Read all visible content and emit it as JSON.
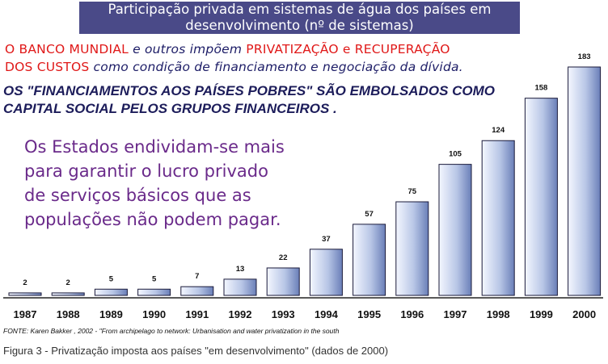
{
  "slide": {
    "title_line1": "Participação privada em sistemas de água dos países em",
    "title_line2": "desenvolvimento (nº de sistemas)",
    "line1": {
      "a": "O BANCO MUNDIAL",
      "b": " e outros impõem ",
      "c": "PRIVATIZAÇÃO e RECUPERAÇÃO"
    },
    "line2": {
      "a": "DOS CUSTOS",
      "b": " como condição de financiamento e negociação da dívida."
    },
    "bold_text": "OS \"FINANCIAMENTOS AOS PAÍSES POBRES\" SÃO EMBOLSADOS COMO CAPITAL SOCIAL PELOS GRUPOS FINANCEIROS .",
    "purple_text": "Os Estados endividam-se mais para garantir o lucro privado de serviços básicos que as populações não podem pagar.",
    "source": "FONTE: Karen Bakker , 2002 - \"From archipelago to network: Urbanisation and water privatization in the south",
    "caption": "Figura 3 - Privatização imposta aos países \"em desenvolvimento\" (dados de 2000)"
  },
  "chart_data": {
    "type": "bar",
    "title": "Participação privada em sistemas de água dos países em desenvolvimento (nº de sistemas)",
    "categories": [
      "1987",
      "1988",
      "1989",
      "1990",
      "1991",
      "1992",
      "1993",
      "1994",
      "1995",
      "1996",
      "1997",
      "1998",
      "1999",
      "2000"
    ],
    "values": [
      2,
      2,
      5,
      5,
      7,
      13,
      22,
      37,
      57,
      75,
      105,
      124,
      158,
      183
    ],
    "ylim": [
      0,
      190
    ],
    "grid": false,
    "bar_color_light": "#f4f7ff",
    "bar_color_dark": "#6a7fb8"
  }
}
